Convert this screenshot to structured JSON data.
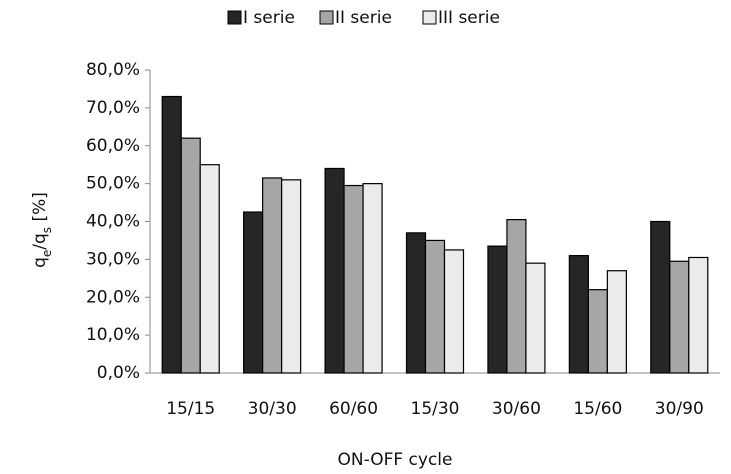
{
  "chart_data": {
    "type": "bar",
    "y_label_parts": [
      "q",
      "e",
      "/q",
      "s",
      " [%]"
    ],
    "x_label": "ON-OFF cycle",
    "categories": [
      "15/15",
      "30/30",
      "60/60",
      "15/30",
      "30/60",
      "15/60",
      "30/90"
    ],
    "series": [
      {
        "name": "I serie",
        "color": "#262626",
        "values": [
          73,
          42.5,
          54,
          37,
          33.5,
          31,
          40
        ]
      },
      {
        "name": "II serie",
        "color": "#a6a6a6",
        "values": [
          62,
          51.5,
          49.5,
          35,
          40.5,
          22,
          29.5
        ]
      },
      {
        "name": "III serie",
        "color": "#ebebeb",
        "values": [
          55,
          51,
          50,
          32.5,
          29,
          27,
          30.5
        ]
      }
    ],
    "ylim": [
      0,
      80
    ],
    "yticks": [
      {
        "value": 0,
        "label": "0,0%"
      },
      {
        "value": 10,
        "label": "10,0%"
      },
      {
        "value": 20,
        "label": "20,0%"
      },
      {
        "value": 30,
        "label": "30,0%"
      },
      {
        "value": 40,
        "label": "40,0%"
      },
      {
        "value": 50,
        "label": "50,0%"
      },
      {
        "value": 60,
        "label": "60,0%"
      },
      {
        "value": 70,
        "label": "70,0%"
      },
      {
        "value": 80,
        "label": "80,0%"
      }
    ],
    "legend": "top"
  }
}
